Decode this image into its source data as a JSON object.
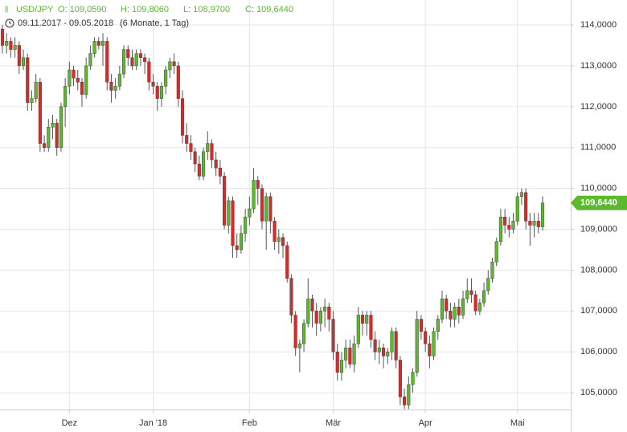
{
  "chart_data": {
    "type": "candlestick",
    "title": "USD/JPY",
    "quote": [
      "O: 109,0590",
      "H: 109,8060",
      "L: 108,9700",
      "C: 109,6440"
    ],
    "range": "09.11.2017 - 09.05.2018",
    "period": "(6 Monate, 1 Tag)",
    "last_price_label": "109,6440",
    "up_color": "#5cb82d",
    "down_color": "#d62b2b",
    "ylim": [
      104.59,
      114.61
    ],
    "yticks": [
      {
        "value": 105,
        "label": "105,0000"
      },
      {
        "value": 106,
        "label": "106,0000"
      },
      {
        "value": 107,
        "label": "107,0000"
      },
      {
        "value": 108,
        "label": "108,0000"
      },
      {
        "value": 109,
        "label": "109,0000"
      },
      {
        "value": 110,
        "label": "110,0000"
      },
      {
        "value": 111,
        "label": "111,0000"
      },
      {
        "value": 112,
        "label": "112,0000"
      },
      {
        "value": 113,
        "label": "113,0000"
      },
      {
        "value": 114,
        "label": "114,0000"
      }
    ],
    "grid": true,
    "categories": [
      null,
      null,
      null,
      null,
      null,
      null,
      null,
      null,
      null,
      null,
      null,
      null,
      null,
      null,
      null,
      null,
      "Dez",
      null,
      null,
      null,
      null,
      null,
      null,
      null,
      null,
      null,
      null,
      null,
      null,
      null,
      null,
      null,
      null,
      null,
      null,
      null,
      "Jan '18",
      null,
      null,
      null,
      null,
      null,
      null,
      null,
      null,
      null,
      null,
      null,
      null,
      null,
      null,
      null,
      null,
      null,
      null,
      null,
      null,
      null,
      null,
      "Feb",
      null,
      null,
      null,
      null,
      null,
      null,
      null,
      null,
      null,
      null,
      null,
      null,
      null,
      null,
      null,
      null,
      null,
      null,
      null,
      "Mär",
      null,
      null,
      null,
      null,
      null,
      null,
      null,
      null,
      null,
      null,
      null,
      null,
      null,
      null,
      null,
      null,
      null,
      null,
      null,
      null,
      null,
      "Apr",
      null,
      null,
      null,
      null,
      null,
      null,
      null,
      null,
      null,
      null,
      null,
      null,
      null,
      null,
      null,
      null,
      null,
      null,
      null,
      null,
      null,
      "Mai",
      null,
      null,
      null,
      null,
      null,
      null
    ],
    "ohlc": [
      [
        113.9,
        114.0,
        113.3,
        113.5
      ],
      [
        113.5,
        113.8,
        113.3,
        113.6
      ],
      [
        113.6,
        113.7,
        113.2,
        113.4
      ],
      [
        113.4,
        113.7,
        113.2,
        113.5
      ],
      [
        113.5,
        113.6,
        112.8,
        113.0
      ],
      [
        113.0,
        113.4,
        112.9,
        113.2
      ],
      [
        113.2,
        113.3,
        111.9,
        112.1
      ],
      [
        112.1,
        112.4,
        111.9,
        112.2
      ],
      [
        112.2,
        112.8,
        112.1,
        112.6
      ],
      [
        112.6,
        112.7,
        110.9,
        111.1
      ],
      [
        111.1,
        111.3,
        110.9,
        111.0
      ],
      [
        111.0,
        111.7,
        110.9,
        111.5
      ],
      [
        111.5,
        111.8,
        111.2,
        111.6
      ],
      [
        111.6,
        111.7,
        110.8,
        111.0
      ],
      [
        111.0,
        112.1,
        110.9,
        112.0
      ],
      [
        112.0,
        112.7,
        111.5,
        112.5
      ],
      [
        112.5,
        113.1,
        112.3,
        112.9
      ],
      [
        112.9,
        113.0,
        112.5,
        112.7
      ],
      [
        112.7,
        112.9,
        112.4,
        112.6
      ],
      [
        112.6,
        112.7,
        112.0,
        112.3
      ],
      [
        112.3,
        113.2,
        112.2,
        113.0
      ],
      [
        113.0,
        113.5,
        112.9,
        113.3
      ],
      [
        113.3,
        113.7,
        113.2,
        113.6
      ],
      [
        113.6,
        113.7,
        113.4,
        113.5
      ],
      [
        113.5,
        113.8,
        113.0,
        113.6
      ],
      [
        113.6,
        113.7,
        112.4,
        112.6
      ],
      [
        112.6,
        112.8,
        112.1,
        112.4
      ],
      [
        112.4,
        112.7,
        112.2,
        112.5
      ],
      [
        112.5,
        113.0,
        112.4,
        112.8
      ],
      [
        112.8,
        113.5,
        112.7,
        113.4
      ],
      [
        113.4,
        113.5,
        113.0,
        113.2
      ],
      [
        113.2,
        113.4,
        112.9,
        113.0
      ],
      [
        113.0,
        113.4,
        112.9,
        113.3
      ],
      [
        113.3,
        113.4,
        113.0,
        113.2
      ],
      [
        113.2,
        113.3,
        112.8,
        113.1
      ],
      [
        113.1,
        113.2,
        112.4,
        112.6
      ],
      [
        112.6,
        112.8,
        112.3,
        112.5
      ],
      [
        112.5,
        112.6,
        111.9,
        112.2
      ],
      [
        112.2,
        112.6,
        112.0,
        112.5
      ],
      [
        112.5,
        113.0,
        112.3,
        112.9
      ],
      [
        112.9,
        113.2,
        112.7,
        113.1
      ],
      [
        113.1,
        113.3,
        112.8,
        113.0
      ],
      [
        113.0,
        113.1,
        112.0,
        112.2
      ],
      [
        112.2,
        112.4,
        111.1,
        111.3
      ],
      [
        111.3,
        111.6,
        110.9,
        111.1
      ],
      [
        111.1,
        111.3,
        110.7,
        110.9
      ],
      [
        110.9,
        111.0,
        110.4,
        110.6
      ],
      [
        110.6,
        110.8,
        110.2,
        110.3
      ],
      [
        110.3,
        111.0,
        110.2,
        110.9
      ],
      [
        110.9,
        111.4,
        110.7,
        111.1
      ],
      [
        111.1,
        111.2,
        110.5,
        110.7
      ],
      [
        110.7,
        110.9,
        110.3,
        110.5
      ],
      [
        110.5,
        110.7,
        110.1,
        110.3
      ],
      [
        110.3,
        110.4,
        109.0,
        109.1
      ],
      [
        109.1,
        109.8,
        108.9,
        109.7
      ],
      [
        109.7,
        109.8,
        108.3,
        108.6
      ],
      [
        108.6,
        108.9,
        108.3,
        108.5
      ],
      [
        108.5,
        109.1,
        108.4,
        108.9
      ],
      [
        108.9,
        109.5,
        108.7,
        109.3
      ],
      [
        109.3,
        109.8,
        109.1,
        109.5
      ],
      [
        109.5,
        110.5,
        109.4,
        110.2
      ],
      [
        110.2,
        110.3,
        109.6,
        110.0
      ],
      [
        110.0,
        110.1,
        109.0,
        109.2
      ],
      [
        109.2,
        109.9,
        108.5,
        109.8
      ],
      [
        109.8,
        109.9,
        108.9,
        109.2
      ],
      [
        109.2,
        109.3,
        108.5,
        108.7
      ],
      [
        108.7,
        109.0,
        108.4,
        108.8
      ],
      [
        108.8,
        108.9,
        108.3,
        108.6
      ],
      [
        108.6,
        108.7,
        107.7,
        107.8
      ],
      [
        107.8,
        107.9,
        106.7,
        106.9
      ],
      [
        106.9,
        107.0,
        105.9,
        106.1
      ],
      [
        106.1,
        106.3,
        105.5,
        106.2
      ],
      [
        106.2,
        106.8,
        106.0,
        106.7
      ],
      [
        106.7,
        107.8,
        106.6,
        107.3
      ],
      [
        107.3,
        107.4,
        106.6,
        107.0
      ],
      [
        107.0,
        107.2,
        106.4,
        106.7
      ],
      [
        106.7,
        107.1,
        106.5,
        107.0
      ],
      [
        107.0,
        107.3,
        106.6,
        107.1
      ],
      [
        107.1,
        107.2,
        106.5,
        106.8
      ],
      [
        106.8,
        107.0,
        105.8,
        106.0
      ],
      [
        106.0,
        106.2,
        105.3,
        105.5
      ],
      [
        105.5,
        106.0,
        105.3,
        105.8
      ],
      [
        105.8,
        106.3,
        105.6,
        106.1
      ],
      [
        106.1,
        106.3,
        105.6,
        105.7
      ],
      [
        105.7,
        106.4,
        105.5,
        106.2
      ],
      [
        106.2,
        107.1,
        106.1,
        106.9
      ],
      [
        106.9,
        107.0,
        106.4,
        106.7
      ],
      [
        106.7,
        107.0,
        106.4,
        106.9
      ],
      [
        106.9,
        107.0,
        106.1,
        106.3
      ],
      [
        106.3,
        106.5,
        105.8,
        106.0
      ],
      [
        106.0,
        106.3,
        105.7,
        106.1
      ],
      [
        106.1,
        106.2,
        105.6,
        105.9
      ],
      [
        105.9,
        106.1,
        105.7,
        106.0
      ],
      [
        106.0,
        106.6,
        105.8,
        106.5
      ],
      [
        106.5,
        106.6,
        105.6,
        105.8
      ],
      [
        105.8,
        105.9,
        104.7,
        104.9
      ],
      [
        104.9,
        105.1,
        104.6,
        104.7
      ],
      [
        104.7,
        105.4,
        104.6,
        105.2
      ],
      [
        105.2,
        105.6,
        105.0,
        105.5
      ],
      [
        105.5,
        107.0,
        105.4,
        106.8
      ],
      [
        106.8,
        106.9,
        106.3,
        106.5
      ],
      [
        106.5,
        106.6,
        106.0,
        106.2
      ],
      [
        106.2,
        106.4,
        105.6,
        105.9
      ],
      [
        105.9,
        106.6,
        105.8,
        106.5
      ],
      [
        106.5,
        106.9,
        106.3,
        106.8
      ],
      [
        106.8,
        107.5,
        106.7,
        107.3
      ],
      [
        107.3,
        107.4,
        106.8,
        107.0
      ],
      [
        107.0,
        107.2,
        106.6,
        106.8
      ],
      [
        106.8,
        107.2,
        106.6,
        107.1
      ],
      [
        107.1,
        107.3,
        106.7,
        106.9
      ],
      [
        106.9,
        107.5,
        106.8,
        107.3
      ],
      [
        107.3,
        107.8,
        107.2,
        107.5
      ],
      [
        107.5,
        107.8,
        107.2,
        107.4
      ],
      [
        107.4,
        107.5,
        106.9,
        107.0
      ],
      [
        107.0,
        107.3,
        106.9,
        107.2
      ],
      [
        107.2,
        107.7,
        107.1,
        107.5
      ],
      [
        107.5,
        108.0,
        107.4,
        107.8
      ],
      [
        107.8,
        108.3,
        107.7,
        108.2
      ],
      [
        108.2,
        108.8,
        108.1,
        108.7
      ],
      [
        108.7,
        109.5,
        108.6,
        109.3
      ],
      [
        109.3,
        109.5,
        108.9,
        109.1
      ],
      [
        109.1,
        109.3,
        108.8,
        109.0
      ],
      [
        109.0,
        109.4,
        108.9,
        109.2
      ],
      [
        109.2,
        109.9,
        109.1,
        109.8
      ],
      [
        109.8,
        110.0,
        109.6,
        109.9
      ],
      [
        109.9,
        110.0,
        109.0,
        109.2
      ],
      [
        109.2,
        109.4,
        108.6,
        109.1
      ],
      [
        109.1,
        109.4,
        108.8,
        109.2
      ],
      [
        109.2,
        109.4,
        108.9,
        109.06
      ],
      [
        109.059,
        109.806,
        108.97,
        109.644
      ]
    ]
  }
}
